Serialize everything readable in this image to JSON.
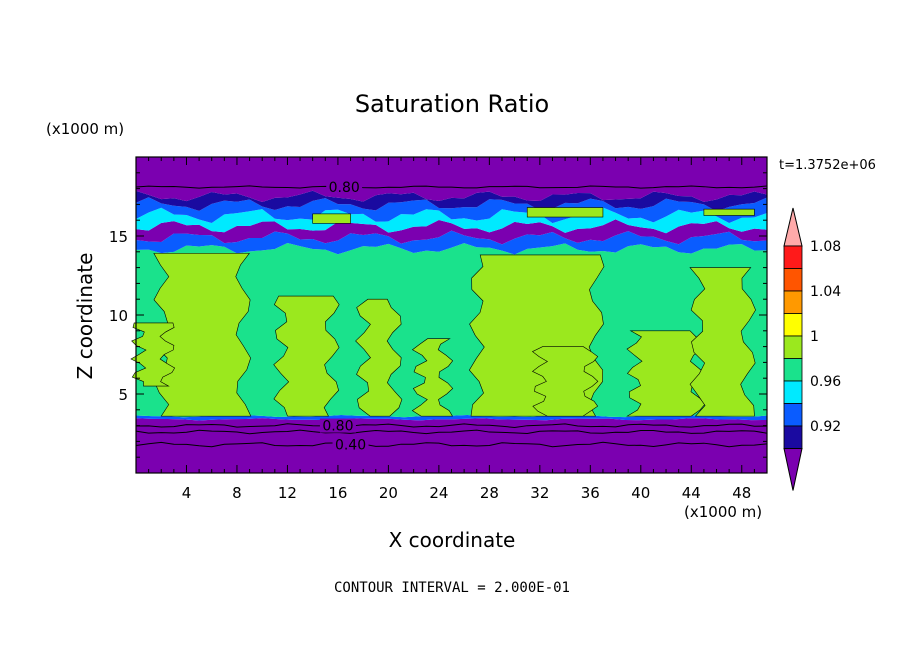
{
  "chart_data": {
    "type": "heatmap",
    "title": "Saturation Ratio",
    "xlabel": "X coordinate",
    "ylabel": "Z coordinate",
    "x_unit": "(x1000 m)",
    "y_unit": "(x1000 m)",
    "time_label": "t=1.3752e+06",
    "footer": "CONTOUR INTERVAL = 2.000E-01",
    "xlim": [
      0,
      50
    ],
    "ylim": [
      0,
      20
    ],
    "x_ticks": [
      4,
      8,
      12,
      16,
      20,
      24,
      28,
      32,
      36,
      40,
      44,
      48
    ],
    "y_ticks": [
      5,
      10,
      15
    ],
    "contour_labels": [
      {
        "text": "0.80",
        "x": 16.5,
        "z": 18.1
      },
      {
        "text": "0.80",
        "x": 16.0,
        "z": 3.0
      },
      {
        "text": "0.40",
        "x": 17.0,
        "z": 1.8
      }
    ],
    "colorbar": {
      "colors": [
        "#7b00b0",
        "#1a0aa0",
        "#0a5cff",
        "#00eaff",
        "#1ae28c",
        "#9be81e",
        "#ffff00",
        "#ff9900",
        "#ff5500",
        "#ff1a1a",
        "#ffaaaa"
      ],
      "tick_labels": [
        "0.92",
        "0.96",
        "1",
        "1.04",
        "1.08"
      ]
    },
    "regions": [
      {
        "zmin": 0.0,
        "zmax": 3.4,
        "value": 0.6
      },
      {
        "zmin": 3.4,
        "zmax": 14.2,
        "value": 0.99
      },
      {
        "zmin": 3.6,
        "zmax": 12.5,
        "value": 1.01
      },
      {
        "zmin": 14.2,
        "zmax": 17.5,
        "value": 0.95
      },
      {
        "zmin": 17.5,
        "zmax": 20.0,
        "value": 0.85
      }
    ]
  }
}
